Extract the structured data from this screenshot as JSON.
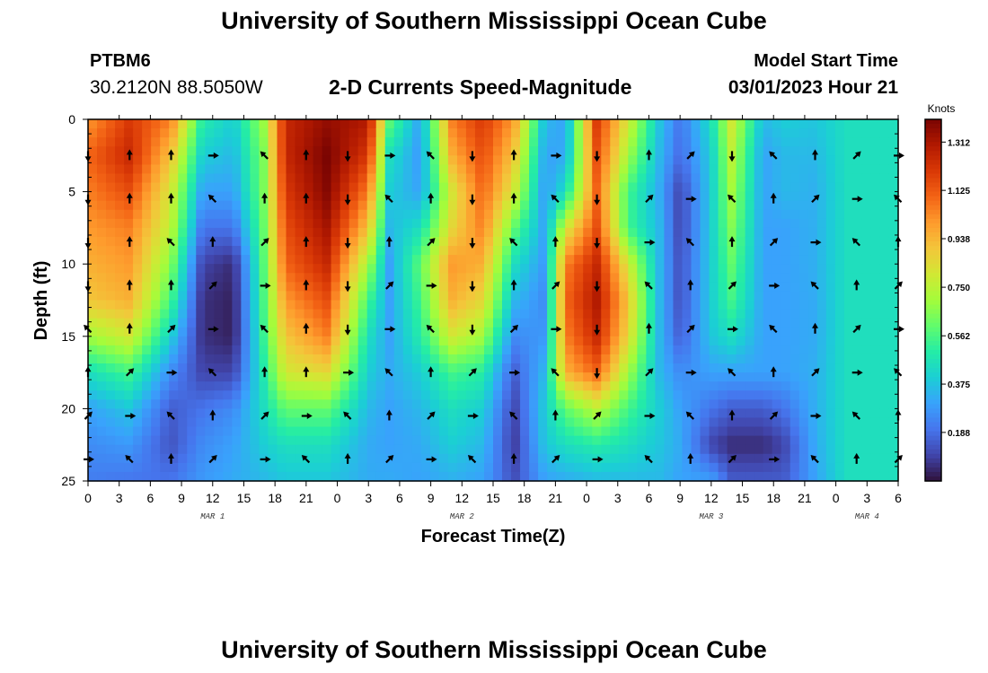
{
  "header": {
    "title": "University of Southern Mississippi Ocean Cube",
    "station_id": "PTBM6",
    "station_coords": "30.2120N  88.5050W",
    "plot_title": "2-D Currents Speed-Magnitude",
    "model_label": "Model Start Time",
    "model_time": "03/01/2023 Hour 21"
  },
  "footer": {
    "title": "University of Southern Mississippi Ocean Cube"
  },
  "chart_data": {
    "type": "heatmap",
    "title": "2-D Currents Speed-Magnitude",
    "xlabel": "Forecast Time(Z)",
    "ylabel": "Depth (ft)",
    "x_ticks": [
      "0",
      "3",
      "6",
      "9",
      "12",
      "15",
      "18",
      "21",
      "0",
      "3",
      "6",
      "9",
      "12",
      "15",
      "18",
      "21",
      "0",
      "3",
      "6",
      "9",
      "12",
      "15",
      "18",
      "21",
      "0",
      "3",
      "6"
    ],
    "x_hours_range": [
      0,
      78
    ],
    "date_labels": [
      {
        "text": "MAR 1",
        "hour": 12
      },
      {
        "text": "MAR 2",
        "hour": 36
      },
      {
        "text": "MAR 3",
        "hour": 60
      },
      {
        "text": "MAR 4",
        "hour": 75
      }
    ],
    "y_ticks": [
      0,
      5,
      10,
      15,
      20,
      25
    ],
    "ylim": [
      0,
      25
    ],
    "colorbar": {
      "unit": "Knots",
      "min": 0.0,
      "max": 1.4,
      "tick_values": [
        0.188,
        0.375,
        0.562,
        0.75,
        0.938,
        1.125,
        1.312
      ],
      "tick_labels": [
        "0.188",
        "0.375",
        "0.562",
        "0.750",
        "0.938",
        "1.125",
        "1.312"
      ],
      "colors": [
        "#30123b",
        "#4145ab",
        "#4675ed",
        "#39a2fc",
        "#1bcfd4",
        "#24eca6",
        "#61fc6c",
        "#a4fc3b",
        "#d1e834",
        "#f3c63a",
        "#fe9b2d",
        "#f36315",
        "#d93806",
        "#b11901",
        "#7a0402"
      ]
    },
    "depth_profiles": [
      {
        "hour": 0,
        "speeds": [
          1.0,
          1.1,
          1.05,
          1.0,
          0.95,
          0.9,
          0.7,
          0.45,
          0.3,
          0.25,
          0.22
        ]
      },
      {
        "hour": 4,
        "speeds": [
          1.2,
          1.25,
          1.15,
          1.05,
          1.0,
          0.95,
          0.8,
          0.55,
          0.38,
          0.28,
          0.2
        ]
      },
      {
        "hour": 8,
        "speeds": [
          1.05,
          0.9,
          0.8,
          0.75,
          0.65,
          0.55,
          0.4,
          0.25,
          0.15,
          0.13,
          0.2
        ]
      },
      {
        "hour": 11,
        "speeds": [
          0.5,
          0.4,
          0.3,
          0.2,
          0.1,
          0.06,
          0.06,
          0.1,
          0.2,
          0.25,
          0.28
        ]
      },
      {
        "hour": 14,
        "speeds": [
          0.4,
          0.35,
          0.3,
          0.2,
          0.05,
          0.03,
          0.03,
          0.1,
          0.25,
          0.3,
          0.32
        ]
      },
      {
        "hour": 17,
        "speeds": [
          0.7,
          0.65,
          0.65,
          0.62,
          0.6,
          0.58,
          0.55,
          0.5,
          0.45,
          0.4,
          0.35
        ]
      },
      {
        "hour": 19,
        "speeds": [
          1.25,
          1.25,
          1.2,
          1.15,
          1.1,
          1.0,
          0.9,
          0.8,
          0.6,
          0.45,
          0.38
        ]
      },
      {
        "hour": 23,
        "speeds": [
          1.35,
          1.4,
          1.38,
          1.32,
          1.25,
          1.15,
          1.05,
          0.85,
          0.6,
          0.45,
          0.38
        ]
      },
      {
        "hour": 27,
        "speeds": [
          1.3,
          1.2,
          1.05,
          0.9,
          0.7,
          0.55,
          0.45,
          0.4,
          0.35,
          0.32,
          0.32
        ]
      },
      {
        "hour": 29,
        "speeds": [
          0.6,
          0.45,
          0.4,
          0.35,
          0.3,
          0.3,
          0.3,
          0.32,
          0.3,
          0.3,
          0.32
        ]
      },
      {
        "hour": 32,
        "speeds": [
          0.3,
          0.28,
          0.3,
          0.45,
          0.6,
          0.55,
          0.5,
          0.4,
          0.35,
          0.32,
          0.3
        ]
      },
      {
        "hour": 35,
        "speeds": [
          1.05,
          0.95,
          0.8,
          0.85,
          1.0,
          0.95,
          0.8,
          0.55,
          0.45,
          0.4,
          0.33
        ]
      },
      {
        "hour": 38,
        "speeds": [
          1.2,
          1.15,
          1.1,
          1.05,
          0.95,
          0.85,
          0.7,
          0.5,
          0.4,
          0.35,
          0.3
        ]
      },
      {
        "hour": 41,
        "speeds": [
          1.0,
          0.9,
          0.8,
          0.6,
          0.45,
          0.35,
          0.25,
          0.15,
          0.1,
          0.08,
          0.12
        ]
      },
      {
        "hour": 44,
        "speeds": [
          0.35,
          0.3,
          0.28,
          0.3,
          0.28,
          0.25,
          0.28,
          0.35,
          0.4,
          0.38,
          0.3
        ]
      },
      {
        "hour": 46,
        "speeds": [
          0.3,
          0.32,
          0.45,
          0.8,
          1.05,
          1.1,
          1.05,
          0.95,
          0.6,
          0.45,
          0.32
        ]
      },
      {
        "hour": 49,
        "speeds": [
          1.2,
          1.15,
          1.1,
          1.15,
          1.25,
          1.3,
          1.25,
          1.1,
          0.75,
          0.5,
          0.35
        ]
      },
      {
        "hour": 52,
        "speeds": [
          0.8,
          0.7,
          0.55,
          0.55,
          0.8,
          0.9,
          0.85,
          0.7,
          0.55,
          0.45,
          0.35
        ]
      },
      {
        "hour": 55,
        "speeds": [
          0.38,
          0.35,
          0.32,
          0.35,
          0.35,
          0.35,
          0.35,
          0.35,
          0.4,
          0.38,
          0.35
        ]
      },
      {
        "hour": 57,
        "speeds": [
          0.2,
          0.18,
          0.1,
          0.1,
          0.12,
          0.12,
          0.15,
          0.25,
          0.3,
          0.32,
          0.3
        ]
      },
      {
        "hour": 60,
        "speeds": [
          0.45,
          0.4,
          0.4,
          0.4,
          0.4,
          0.4,
          0.38,
          0.3,
          0.2,
          0.1,
          0.3
        ]
      },
      {
        "hour": 62,
        "speeds": [
          0.8,
          0.75,
          0.7,
          0.65,
          0.6,
          0.55,
          0.45,
          0.3,
          0.15,
          0.05,
          0.15
        ]
      },
      {
        "hour": 65,
        "speeds": [
          0.35,
          0.3,
          0.3,
          0.3,
          0.3,
          0.3,
          0.3,
          0.3,
          0.15,
          0.05,
          0.15
        ]
      },
      {
        "hour": 67,
        "speeds": [
          0.4,
          0.35,
          0.35,
          0.3,
          0.3,
          0.3,
          0.3,
          0.3,
          0.2,
          0.1,
          0.15
        ]
      },
      {
        "hour": 70,
        "speeds": [
          0.38,
          0.35,
          0.33,
          0.33,
          0.33,
          0.32,
          0.32,
          0.33,
          0.33,
          0.32,
          0.3
        ]
      },
      {
        "hour": 73,
        "speeds": [
          0.45,
          0.45,
          0.45,
          0.45,
          0.45,
          0.45,
          0.45,
          0.45,
          0.45,
          0.45,
          0.45
        ]
      },
      {
        "hour": 78,
        "speeds": [
          0.45,
          0.45,
          0.45,
          0.45,
          0.45,
          0.45,
          0.45,
          0.45,
          0.45,
          0.45,
          0.45
        ]
      }
    ],
    "vector_hours": [
      0,
      4,
      8,
      12,
      17,
      21,
      25,
      29,
      33,
      37,
      41,
      45,
      49,
      54,
      58,
      62,
      66,
      70,
      74,
      78
    ],
    "vector_depths": [
      3,
      6,
      9,
      12,
      15,
      18,
      21,
      24
    ]
  }
}
